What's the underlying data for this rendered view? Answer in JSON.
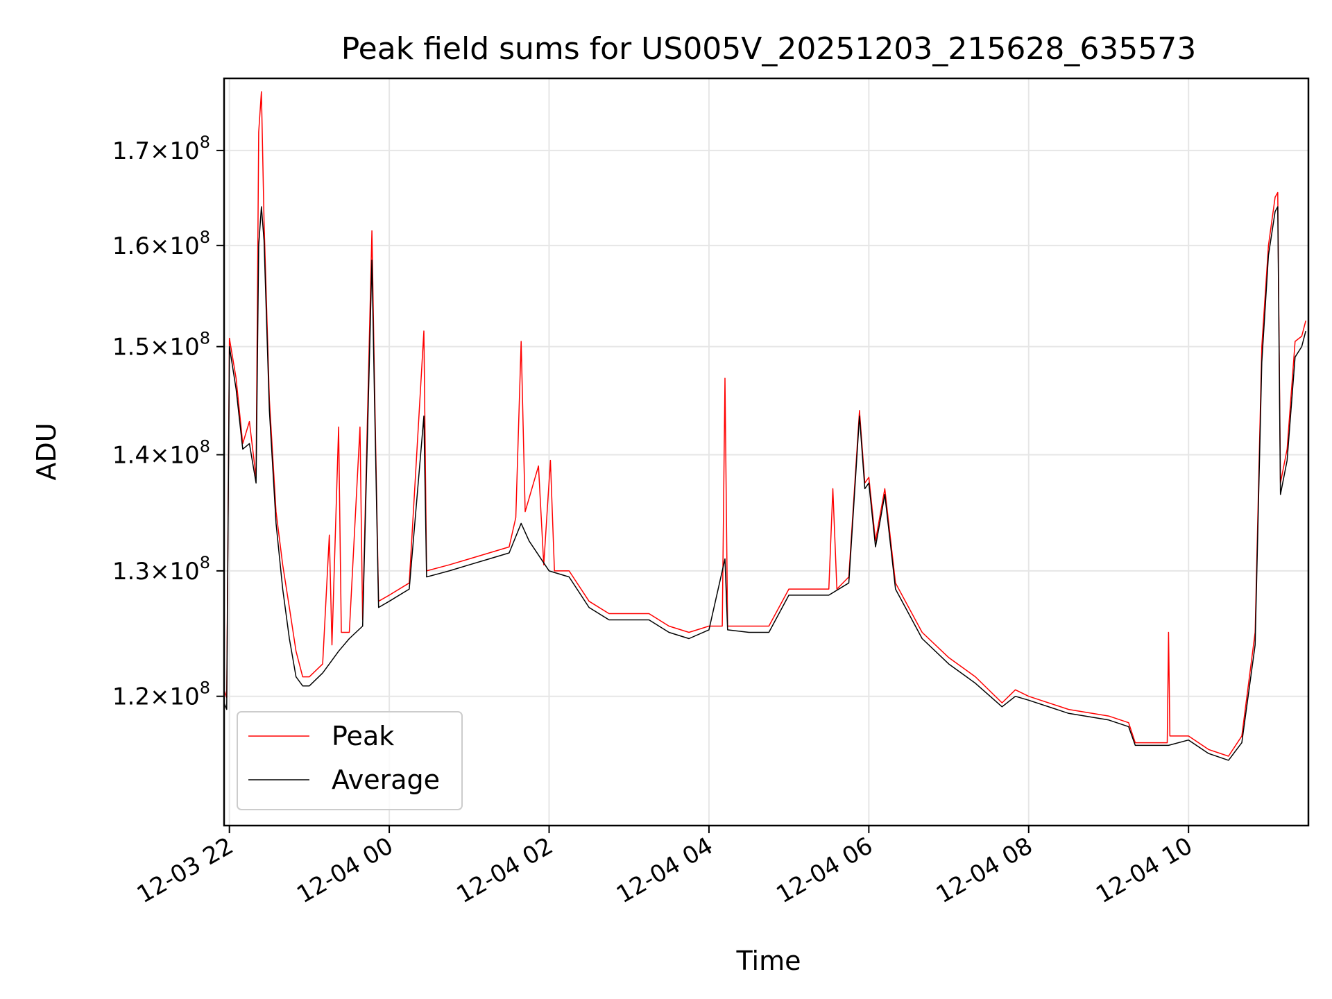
{
  "chart_data": {
    "type": "line",
    "title": "Peak field sums for US005V_20251203_215628_635573",
    "xlabel": "Time",
    "ylabel": "ADU",
    "x_scale": "time",
    "y_scale": "log",
    "xlim": [
      "2025-12-03 21:56",
      "2025-12-04 11:30"
    ],
    "ylim": [
      110500000,
      178000000
    ],
    "grid": true,
    "legend_position": "lower-left",
    "x_ticks": [
      {
        "value": "2025-12-03 22:00",
        "label": "12-03 22"
      },
      {
        "value": "2025-12-04 00:00",
        "label": "12-04 00"
      },
      {
        "value": "2025-12-04 02:00",
        "label": "12-04 02"
      },
      {
        "value": "2025-12-04 04:00",
        "label": "12-04 04"
      },
      {
        "value": "2025-12-04 06:00",
        "label": "12-04 06"
      },
      {
        "value": "2025-12-04 08:00",
        "label": "12-04 08"
      },
      {
        "value": "2025-12-04 10:00",
        "label": "12-04 10"
      }
    ],
    "y_ticks": [
      {
        "value": 120000000,
        "mantissa": "1.2",
        "exp": "8"
      },
      {
        "value": 130000000,
        "mantissa": "1.3",
        "exp": "8"
      },
      {
        "value": 140000000,
        "mantissa": "1.4",
        "exp": "8"
      },
      {
        "value": 150000000,
        "mantissa": "1.5",
        "exp": "8"
      },
      {
        "value": 160000000,
        "mantissa": "1.6",
        "exp": "8"
      },
      {
        "value": 170000000,
        "mantissa": "1.7",
        "exp": "8"
      }
    ],
    "series": [
      {
        "name": "Peak",
        "color": "#ff0000",
        "points": [
          [
            "2025-12-03 21:56",
            120500000
          ],
          [
            "2025-12-03 21:58",
            119900000
          ],
          [
            "2025-12-03 22:00",
            150800000
          ],
          [
            "2025-12-03 22:05",
            147000000
          ],
          [
            "2025-12-03 22:10",
            141000000
          ],
          [
            "2025-12-03 22:15",
            143000000
          ],
          [
            "2025-12-03 22:20",
            138000000
          ],
          [
            "2025-12-03 22:22",
            172000000
          ],
          [
            "2025-12-03 22:24",
            176500000
          ],
          [
            "2025-12-03 22:26",
            162500000
          ],
          [
            "2025-12-03 22:30",
            145000000
          ],
          [
            "2025-12-03 22:35",
            135000000
          ],
          [
            "2025-12-03 22:40",
            130500000
          ],
          [
            "2025-12-03 22:45",
            127000000
          ],
          [
            "2025-12-03 22:50",
            123500000
          ],
          [
            "2025-12-03 22:55",
            121500000
          ],
          [
            "2025-12-03 23:00",
            121500000
          ],
          [
            "2025-12-03 23:10",
            122500000
          ],
          [
            "2025-12-03 23:15",
            133000000
          ],
          [
            "2025-12-03 23:17",
            124000000
          ],
          [
            "2025-12-03 23:22",
            142500000
          ],
          [
            "2025-12-03 23:24",
            125000000
          ],
          [
            "2025-12-03 23:30",
            125000000
          ],
          [
            "2025-12-03 23:38",
            142500000
          ],
          [
            "2025-12-03 23:40",
            126000000
          ],
          [
            "2025-12-03 23:47",
            161500000
          ],
          [
            "2025-12-03 23:49",
            146000000
          ],
          [
            "2025-12-03 23:52",
            127500000
          ],
          [
            "2025-12-04 00:00",
            128000000
          ],
          [
            "2025-12-04 00:15",
            129000000
          ],
          [
            "2025-12-04 00:26",
            151500000
          ],
          [
            "2025-12-04 00:28",
            130000000
          ],
          [
            "2025-12-04 00:45",
            130500000
          ],
          [
            "2025-12-04 01:00",
            131000000
          ],
          [
            "2025-12-04 01:15",
            131500000
          ],
          [
            "2025-12-04 01:30",
            132000000
          ],
          [
            "2025-12-04 01:35",
            134500000
          ],
          [
            "2025-12-04 01:39",
            150500000
          ],
          [
            "2025-12-04 01:42",
            135000000
          ],
          [
            "2025-12-04 01:52",
            139000000
          ],
          [
            "2025-12-04 01:56",
            130500000
          ],
          [
            "2025-12-04 02:01",
            139500000
          ],
          [
            "2025-12-04 02:04",
            130000000
          ],
          [
            "2025-12-04 02:15",
            130000000
          ],
          [
            "2025-12-04 02:30",
            127500000
          ],
          [
            "2025-12-04 02:45",
            126500000
          ],
          [
            "2025-12-04 03:00",
            126500000
          ],
          [
            "2025-12-04 03:15",
            126500000
          ],
          [
            "2025-12-04 03:30",
            125500000
          ],
          [
            "2025-12-04 03:45",
            125000000
          ],
          [
            "2025-12-04 04:00",
            125500000
          ],
          [
            "2025-12-04 04:10",
            125500000
          ],
          [
            "2025-12-04 04:12",
            147000000
          ],
          [
            "2025-12-04 04:14",
            125500000
          ],
          [
            "2025-12-04 04:30",
            125500000
          ],
          [
            "2025-12-04 04:45",
            125500000
          ],
          [
            "2025-12-04 05:00",
            128500000
          ],
          [
            "2025-12-04 05:15",
            128500000
          ],
          [
            "2025-12-04 05:30",
            128500000
          ],
          [
            "2025-12-04 05:33",
            137000000
          ],
          [
            "2025-12-04 05:36",
            128500000
          ],
          [
            "2025-12-04 05:45",
            129500000
          ],
          [
            "2025-12-04 05:53",
            144000000
          ],
          [
            "2025-12-04 05:57",
            137500000
          ],
          [
            "2025-12-04 06:00",
            138000000
          ],
          [
            "2025-12-04 06:05",
            132500000
          ],
          [
            "2025-12-04 06:12",
            137000000
          ],
          [
            "2025-12-04 06:20",
            129000000
          ],
          [
            "2025-12-04 06:40",
            125000000
          ],
          [
            "2025-12-04 07:00",
            123000000
          ],
          [
            "2025-12-04 07:20",
            121500000
          ],
          [
            "2025-12-04 07:40",
            119500000
          ],
          [
            "2025-12-04 07:50",
            120500000
          ],
          [
            "2025-12-04 08:00",
            120000000
          ],
          [
            "2025-12-04 08:30",
            119000000
          ],
          [
            "2025-12-04 09:00",
            118500000
          ],
          [
            "2025-12-04 09:15",
            118000000
          ],
          [
            "2025-12-04 09:20",
            116500000
          ],
          [
            "2025-12-04 09:44",
            116500000
          ],
          [
            "2025-12-04 09:45",
            125000000
          ],
          [
            "2025-12-04 09:46",
            117000000
          ],
          [
            "2025-12-04 10:00",
            117000000
          ],
          [
            "2025-12-04 10:15",
            116000000
          ],
          [
            "2025-12-04 10:30",
            115500000
          ],
          [
            "2025-12-04 10:40",
            117000000
          ],
          [
            "2025-12-04 10:50",
            125000000
          ],
          [
            "2025-12-04 10:55",
            150000000
          ],
          [
            "2025-12-04 11:00",
            160000000
          ],
          [
            "2025-12-04 11:05",
            165000000
          ],
          [
            "2025-12-04 11:07",
            165500000
          ],
          [
            "2025-12-04 11:09",
            137500000
          ],
          [
            "2025-12-04 11:14",
            140500000
          ],
          [
            "2025-12-04 11:20",
            150500000
          ],
          [
            "2025-12-04 11:25",
            151000000
          ],
          [
            "2025-12-04 11:28",
            152500000
          ]
        ]
      },
      {
        "name": "Average",
        "color": "#000000",
        "points": [
          [
            "2025-12-03 21:56",
            119500000
          ],
          [
            "2025-12-03 21:58",
            119000000
          ],
          [
            "2025-12-03 22:00",
            150000000
          ],
          [
            "2025-12-03 22:05",
            146000000
          ],
          [
            "2025-12-03 22:10",
            140500000
          ],
          [
            "2025-12-03 22:15",
            141000000
          ],
          [
            "2025-12-03 22:20",
            137500000
          ],
          [
            "2025-12-03 22:22",
            160000000
          ],
          [
            "2025-12-03 22:24",
            164000000
          ],
          [
            "2025-12-03 22:26",
            160500000
          ],
          [
            "2025-12-03 22:30",
            144000000
          ],
          [
            "2025-12-03 22:35",
            134000000
          ],
          [
            "2025-12-03 22:40",
            128500000
          ],
          [
            "2025-12-03 22:45",
            124500000
          ],
          [
            "2025-12-03 22:50",
            121500000
          ],
          [
            "2025-12-03 22:55",
            120800000
          ],
          [
            "2025-12-03 23:00",
            120800000
          ],
          [
            "2025-12-03 23:10",
            121800000
          ],
          [
            "2025-12-03 23:15",
            122500000
          ],
          [
            "2025-12-03 23:22",
            123500000
          ],
          [
            "2025-12-03 23:30",
            124500000
          ],
          [
            "2025-12-03 23:40",
            125500000
          ],
          [
            "2025-12-03 23:47",
            158500000
          ],
          [
            "2025-12-03 23:49",
            144500000
          ],
          [
            "2025-12-03 23:52",
            127000000
          ],
          [
            "2025-12-04 00:00",
            127500000
          ],
          [
            "2025-12-04 00:15",
            128500000
          ],
          [
            "2025-12-04 00:26",
            143500000
          ],
          [
            "2025-12-04 00:28",
            129500000
          ],
          [
            "2025-12-04 00:45",
            130000000
          ],
          [
            "2025-12-04 01:00",
            130500000
          ],
          [
            "2025-12-04 01:15",
            131000000
          ],
          [
            "2025-12-04 01:30",
            131500000
          ],
          [
            "2025-12-04 01:39",
            134000000
          ],
          [
            "2025-12-04 01:45",
            132500000
          ],
          [
            "2025-12-04 02:00",
            130000000
          ],
          [
            "2025-12-04 02:15",
            129500000
          ],
          [
            "2025-12-04 02:30",
            127000000
          ],
          [
            "2025-12-04 02:45",
            126000000
          ],
          [
            "2025-12-04 03:00",
            126000000
          ],
          [
            "2025-12-04 03:15",
            126000000
          ],
          [
            "2025-12-04 03:30",
            125000000
          ],
          [
            "2025-12-04 03:45",
            124500000
          ],
          [
            "2025-12-04 04:00",
            125200000
          ],
          [
            "2025-12-04 04:12",
            131000000
          ],
          [
            "2025-12-04 04:14",
            125200000
          ],
          [
            "2025-12-04 04:30",
            125000000
          ],
          [
            "2025-12-04 04:45",
            125000000
          ],
          [
            "2025-12-04 05:00",
            128000000
          ],
          [
            "2025-12-04 05:15",
            128000000
          ],
          [
            "2025-12-04 05:30",
            128000000
          ],
          [
            "2025-12-04 05:45",
            129000000
          ],
          [
            "2025-12-04 05:53",
            143500000
          ],
          [
            "2025-12-04 05:57",
            137000000
          ],
          [
            "2025-12-04 06:00",
            137500000
          ],
          [
            "2025-12-04 06:05",
            132000000
          ],
          [
            "2025-12-04 06:12",
            136500000
          ],
          [
            "2025-12-04 06:20",
            128500000
          ],
          [
            "2025-12-04 06:40",
            124500000
          ],
          [
            "2025-12-04 07:00",
            122500000
          ],
          [
            "2025-12-04 07:20",
            121000000
          ],
          [
            "2025-12-04 07:40",
            119200000
          ],
          [
            "2025-12-04 07:50",
            120000000
          ],
          [
            "2025-12-04 08:00",
            119700000
          ],
          [
            "2025-12-04 08:30",
            118700000
          ],
          [
            "2025-12-04 09:00",
            118200000
          ],
          [
            "2025-12-04 09:15",
            117700000
          ],
          [
            "2025-12-04 09:20",
            116300000
          ],
          [
            "2025-12-04 09:45",
            116300000
          ],
          [
            "2025-12-04 10:00",
            116700000
          ],
          [
            "2025-12-04 10:15",
            115700000
          ],
          [
            "2025-12-04 10:30",
            115200000
          ],
          [
            "2025-12-04 10:40",
            116500000
          ],
          [
            "2025-12-04 10:50",
            124000000
          ],
          [
            "2025-12-04 10:55",
            148500000
          ],
          [
            "2025-12-04 11:00",
            159000000
          ],
          [
            "2025-12-04 11:05",
            163500000
          ],
          [
            "2025-12-04 11:07",
            164000000
          ],
          [
            "2025-12-04 11:09",
            136500000
          ],
          [
            "2025-12-04 11:14",
            139500000
          ],
          [
            "2025-12-04 11:20",
            149000000
          ],
          [
            "2025-12-04 11:25",
            150000000
          ],
          [
            "2025-12-04 11:28",
            151500000
          ]
        ]
      }
    ]
  }
}
